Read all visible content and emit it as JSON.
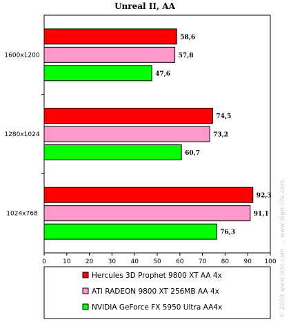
{
  "chart_data": {
    "type": "bar",
    "orientation": "horizontal",
    "title": "Unreal II, AA",
    "categories": [
      "1600x1200",
      "1280x1024",
      "1024x768"
    ],
    "series": [
      {
        "name": "Hercules 3D Prophet 9800 XT AA 4x",
        "color": "#ff0000",
        "values": [
          58.6,
          74.5,
          92.3
        ],
        "labels": [
          "58,6",
          "74,5",
          "92,3"
        ]
      },
      {
        "name": "ATI RADEON 9800 XT 256MB AA 4x",
        "color": "#ff99cc",
        "values": [
          57.8,
          73.2,
          91.1
        ],
        "labels": [
          "57,8",
          "73,2",
          "91,1"
        ]
      },
      {
        "name": "NVIDIA GeForce FX 5950 Ultra AA4x",
        "color": "#00ff00",
        "values": [
          47.6,
          60.7,
          76.3
        ],
        "labels": [
          "47,6",
          "60,7",
          "76,3"
        ]
      }
    ],
    "xlim": [
      0,
      100
    ],
    "xticks": [
      "0",
      "10",
      "20",
      "30",
      "40",
      "50",
      "60",
      "70",
      "80",
      "90",
      "100"
    ],
    "grid": false,
    "legend_position": "bottom"
  },
  "watermark": "© 2003 www.ixbt.com ... www.digit-life.com"
}
